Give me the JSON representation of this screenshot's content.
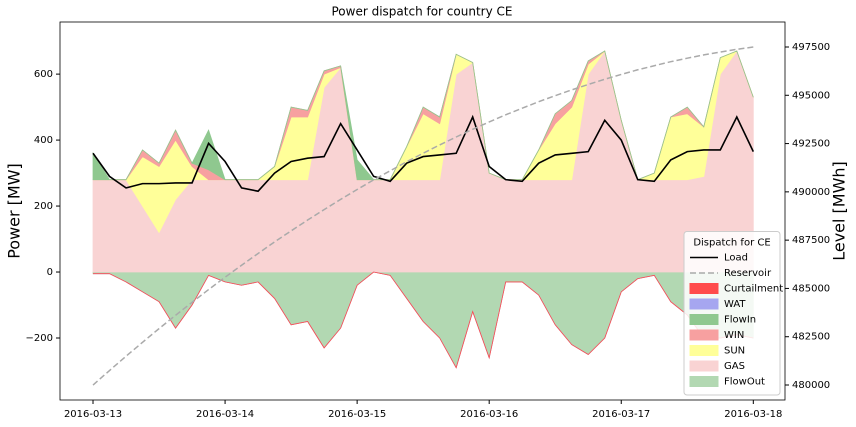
{
  "chart_data": {
    "type": "area",
    "title": "Power dispatch for country CE",
    "ylabel": "Power [MW]",
    "y2label": "Level [MWh]",
    "legend_title": "Dispatch for CE",
    "legend": "lower right",
    "x": [
      0,
      0.125,
      0.25,
      0.375,
      0.5,
      0.625,
      0.75,
      0.875,
      1,
      1.125,
      1.25,
      1.375,
      1.5,
      1.625,
      1.75,
      1.875,
      2,
      2.125,
      2.25,
      2.375,
      2.5,
      2.625,
      2.75,
      2.875,
      3,
      3.125,
      3.25,
      3.375,
      3.5,
      3.625,
      3.75,
      3.875,
      4,
      4.125,
      4.25,
      4.375,
      4.5,
      4.625,
      4.75,
      4.875,
      5
    ],
    "xlim": [
      -0.25,
      5.24
    ],
    "xticks": [
      {
        "value": 0,
        "label": "2016-03-13"
      },
      {
        "value": 1,
        "label": "2016-03-14"
      },
      {
        "value": 2,
        "label": "2016-03-15"
      },
      {
        "value": 3,
        "label": "2016-03-16"
      },
      {
        "value": 4,
        "label": "2016-03-17"
      },
      {
        "value": 5,
        "label": "2016-03-18"
      }
    ],
    "ylim": [
      -388,
      758
    ],
    "yticks": [
      {
        "value": -200,
        "label": "−200"
      },
      0,
      200,
      400,
      600
    ],
    "y2lim": [
      479224,
      498794
    ],
    "y2ticks": [
      480000,
      482500,
      485000,
      487500,
      490000,
      492500,
      495000,
      497500
    ],
    "series": [
      {
        "name": "Load",
        "type": "line",
        "color": "#000000",
        "values": [
          360,
          290,
          255,
          268,
          268,
          270,
          270,
          390,
          335,
          255,
          245,
          300,
          335,
          345,
          350,
          450,
          370,
          290,
          275,
          330,
          350,
          355,
          360,
          470,
          320,
          280,
          275,
          330,
          355,
          360,
          365,
          460,
          400,
          280,
          275,
          340,
          365,
          370,
          370,
          470,
          365
        ]
      },
      {
        "name": "Reservoir",
        "type": "line",
        "linestyle": "dashed",
        "axis": "y2",
        "color": "#aaaaaa",
        "values": [
          480000,
          480750,
          481490,
          482210,
          482920,
          483610,
          484280,
          484940,
          485580,
          486200,
          486810,
          487410,
          487980,
          488540,
          489080,
          489610,
          490120,
          490620,
          491090,
          491560,
          492000,
          492430,
          492840,
          493240,
          493620,
          493990,
          494330,
          494670,
          494980,
          495280,
          495560,
          495830,
          496080,
          496320,
          496530,
          496740,
          496920,
          497090,
          497240,
          497380,
          497500
        ]
      },
      {
        "name": "Curtailment",
        "color": "#ff4c4c",
        "values": [
          0,
          0,
          0,
          0,
          0,
          0,
          0,
          0,
          0,
          0,
          0,
          0,
          0,
          0,
          0,
          0,
          0,
          0,
          0,
          0,
          0,
          0,
          0,
          0,
          0,
          0,
          0,
          0,
          0,
          0,
          0,
          0,
          0,
          0,
          0,
          0,
          0,
          0,
          0,
          0,
          0
        ]
      },
      {
        "name": "WAT",
        "color": "#a6a6f0",
        "values": [
          0,
          0,
          0,
          0,
          0,
          0,
          0,
          0,
          0,
          0,
          0,
          0,
          0,
          0,
          0,
          0,
          0,
          0,
          0,
          0,
          0,
          0,
          0,
          0,
          0,
          0,
          0,
          0,
          0,
          0,
          0,
          0,
          0,
          0,
          0,
          0,
          0,
          0,
          0,
          0,
          0
        ]
      },
      {
        "name": "FlowIn",
        "color": "#8fc88f",
        "values": [
          80,
          0,
          0,
          0,
          0,
          0,
          0,
          120,
          0,
          0,
          0,
          0,
          0,
          0,
          0,
          0,
          60,
          0,
          0,
          0,
          0,
          0,
          0,
          0,
          0,
          0,
          0,
          0,
          0,
          0,
          0,
          0,
          0,
          0,
          0,
          0,
          0,
          0,
          0,
          0,
          0
        ]
      },
      {
        "name": "WIN",
        "color": "#f7a0a0",
        "values": [
          0,
          0,
          0,
          20,
          10,
          30,
          10,
          30,
          0,
          0,
          0,
          0,
          30,
          20,
          10,
          5,
          0,
          0,
          0,
          0,
          20,
          20,
          0,
          0,
          0,
          0,
          0,
          0,
          30,
          20,
          10,
          0,
          0,
          0,
          0,
          0,
          20,
          0,
          0,
          0,
          0
        ]
      },
      {
        "name": "SUN",
        "color": "#ffff99",
        "values": [
          0,
          0,
          0,
          150,
          200,
          180,
          40,
          0,
          0,
          0,
          0,
          40,
          190,
          190,
          40,
          0,
          0,
          0,
          0,
          100,
          200,
          170,
          60,
          0,
          0,
          0,
          0,
          90,
          170,
          220,
          30,
          0,
          0,
          0,
          20,
          190,
          200,
          150,
          50,
          0,
          0
        ]
      },
      {
        "name": "GAS",
        "color": "#f9d3d3",
        "values": [
          280,
          280,
          280,
          200,
          120,
          220,
          280,
          280,
          280,
          280,
          280,
          280,
          280,
          280,
          560,
          620,
          280,
          280,
          280,
          280,
          280,
          280,
          600,
          635,
          300,
          280,
          280,
          280,
          280,
          280,
          600,
          670,
          460,
          280,
          280,
          280,
          280,
          290,
          600,
          670,
          530
        ]
      },
      {
        "name": "FlowOut",
        "color": "#b2d8b2",
        "values": [
          -5,
          -5,
          -30,
          -60,
          -90,
          -170,
          -100,
          -10,
          -30,
          -40,
          -30,
          -80,
          -160,
          -150,
          -230,
          -170,
          -40,
          0,
          -10,
          -80,
          -150,
          -200,
          -290,
          -120,
          -260,
          -30,
          -30,
          -70,
          -160,
          -220,
          -250,
          -200,
          -60,
          -20,
          -10,
          -90,
          -130,
          -200,
          -200,
          -190,
          -200
        ]
      }
    ]
  }
}
